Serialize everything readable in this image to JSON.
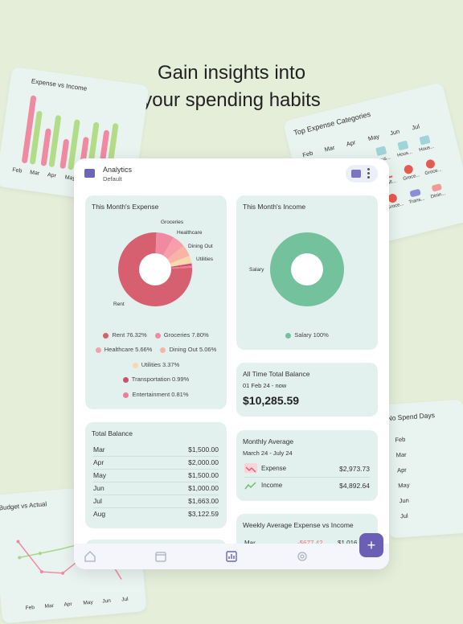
{
  "headline": {
    "line1": "Gain insights into",
    "line2": "your spending habits"
  },
  "bg_expense_income": {
    "title": "Expense vs Income",
    "months": [
      "Feb",
      "Mar",
      "Apr",
      "May"
    ]
  },
  "bg_top_categories": {
    "title": "Top Expense Categories",
    "months": [
      "Feb",
      "Mar",
      "Apr",
      "May",
      "Jun",
      "Jul"
    ],
    "row1": [
      "Hous...",
      "Hous...",
      "Hous..."
    ],
    "row2": [
      "Healt...",
      "Groce...",
      "Groce..."
    ],
    "row3": [
      "Groce...",
      "Trans...",
      "Dinin..."
    ]
  },
  "bg_no_spend": {
    "title": "No Spend Days",
    "months": [
      "Feb",
      "Mar",
      "Apr",
      "May",
      "Jun",
      "Jul"
    ]
  },
  "bg_budget": {
    "title": "Budget vs Actual",
    "months": [
      "Feb",
      "Mar",
      "Apr",
      "May",
      "Jun",
      "Jul"
    ]
  },
  "app": {
    "title": "Analytics",
    "subtitle": "Default",
    "expense": {
      "title": "This Month's Expense",
      "slices": [
        {
          "name": "Rent",
          "pct": 76.32,
          "color": "#d6606f"
        },
        {
          "name": "Groceries",
          "pct": 7.8,
          "color": "#f08aa2"
        },
        {
          "name": "Healthcare",
          "pct": 5.66,
          "color": "#f79eaa"
        },
        {
          "name": "Dining Out",
          "pct": 5.06,
          "color": "#f9b4a4"
        },
        {
          "name": "Utilities",
          "pct": 3.37,
          "color": "#fbd7b0"
        },
        {
          "name": "Transportation",
          "pct": 0.99,
          "color": "#c9526a"
        },
        {
          "name": "Entertainment",
          "pct": 0.81,
          "color": "#ee7c9a"
        }
      ],
      "legend": {
        "rent": "Rent 76.32%",
        "groceries": "Groceries 7.80%",
        "healthcare": "Healthcare 5.66%",
        "dining": "Dining Out 5.06%",
        "utilities": "Utilities 3.37%",
        "transportation": "Transportation 0.99%",
        "entertainment": "Entertainment 0.81%"
      },
      "labels": {
        "groceries": "Groceries",
        "healthcare": "Healthcare",
        "dining": "Dining Out",
        "utilities": "Utilities",
        "rent": "Rent"
      }
    },
    "income": {
      "title": "This Month's Income",
      "label": "Salary",
      "legend": "Salary 100%",
      "color": "#74c19d"
    },
    "all_time": {
      "title": "All Time Total Balance",
      "range": "01 Feb 24 - now",
      "amount": "$10,285.59"
    },
    "total_balance": {
      "title": "Total Balance",
      "rows": [
        {
          "month": "Mar",
          "amount": "$1,500.00"
        },
        {
          "month": "Apr",
          "amount": "$2,000.00"
        },
        {
          "month": "May",
          "amount": "$1,500.00"
        },
        {
          "month": "Jun",
          "amount": "$1,000.00"
        },
        {
          "month": "Jul",
          "amount": "$1,663.00"
        },
        {
          "month": "Aug",
          "amount": "$3,122.59"
        }
      ]
    },
    "monthly_avg": {
      "title": "Monthly Average",
      "range": "March 24 - July 24",
      "expense_label": "Expense",
      "expense_value": "$2,973.73",
      "income_label": "Income",
      "income_value": "$4,892.64"
    },
    "weekly": {
      "title": "Weekly Average Expense vs Income",
      "month": "Mar",
      "expense": "-$677.42",
      "income": "$1,016"
    },
    "fab": "+"
  }
}
